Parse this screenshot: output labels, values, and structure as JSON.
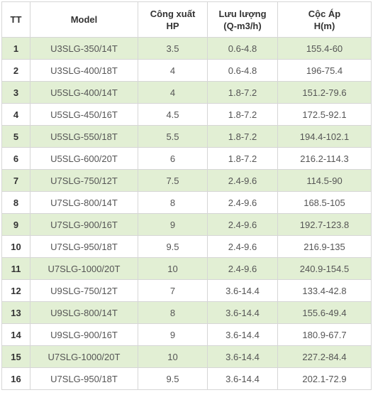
{
  "table": {
    "headers": {
      "tt": "TT",
      "model": "Model",
      "power_line1": "Công xuất",
      "power_line2": "HP",
      "flow_line1": "Lưu lượng",
      "flow_line2": "(Q-m3/h)",
      "head_line1": "Cộc Áp",
      "head_line2": "H(m)"
    },
    "rows": [
      {
        "tt": "1",
        "model": "U3SLG-350/14T",
        "hp": "3.5",
        "flow": "0.6-4.8",
        "head": "155.4-60"
      },
      {
        "tt": "2",
        "model": "U3SLG-400/18T",
        "hp": "4",
        "flow": "0.6-4.8",
        "head": "196-75.4"
      },
      {
        "tt": "3",
        "model": "U5SLG-400/14T",
        "hp": "4",
        "flow": "1.8-7.2",
        "head": "151.2-79.6"
      },
      {
        "tt": "4",
        "model": "U5SLG-450/16T",
        "hp": "4.5",
        "flow": "1.8-7.2",
        "head": "172.5-92.1"
      },
      {
        "tt": "5",
        "model": "U5SLG-550/18T",
        "hp": "5.5",
        "flow": "1.8-7.2",
        "head": "194.4-102.1"
      },
      {
        "tt": "6",
        "model": "U5SLG-600/20T",
        "hp": "6",
        "flow": "1.8-7.2",
        "head": "216.2-114.3"
      },
      {
        "tt": "7",
        "model": "U7SLG-750/12T",
        "hp": "7.5",
        "flow": "2.4-9.6",
        "head": "114.5-90"
      },
      {
        "tt": "8",
        "model": "U7SLG-800/14T",
        "hp": "8",
        "flow": "2.4-9.6",
        "head": "168.5-105"
      },
      {
        "tt": "9",
        "model": "U7SLG-900/16T",
        "hp": "9",
        "flow": "2.4-9.6",
        "head": "192.7-123.8"
      },
      {
        "tt": "10",
        "model": "U7SLG-950/18T",
        "hp": "9.5",
        "flow": "2.4-9.6",
        "head": "216.9-135"
      },
      {
        "tt": "11",
        "model": "U7SLG-1000/20T",
        "hp": "10",
        "flow": "2.4-9.6",
        "head": "240.9-154.5"
      },
      {
        "tt": "12",
        "model": "U9SLG-750/12T",
        "hp": "7",
        "flow": "3.6-14.4",
        "head": "133.4-42.8"
      },
      {
        "tt": "13",
        "model": "U9SLG-800/14T",
        "hp": "8",
        "flow": "3.6-14.4",
        "head": "155.6-49.4"
      },
      {
        "tt": "14",
        "model": "U9SLG-900/16T",
        "hp": "9",
        "flow": "3.6-14.4",
        "head": "180.9-67.7"
      },
      {
        "tt": "15",
        "model": "U7SLG-1000/20T",
        "hp": "10",
        "flow": "3.6-14.4",
        "head": "227.2-84.4"
      },
      {
        "tt": "16",
        "model": "U7SLG-950/18T",
        "hp": "9.5",
        "flow": "3.6-14.4",
        "head": "202.1-72.9"
      }
    ]
  },
  "colors": {
    "stripe": "#e2efd4",
    "border": "#d6d6d6"
  }
}
